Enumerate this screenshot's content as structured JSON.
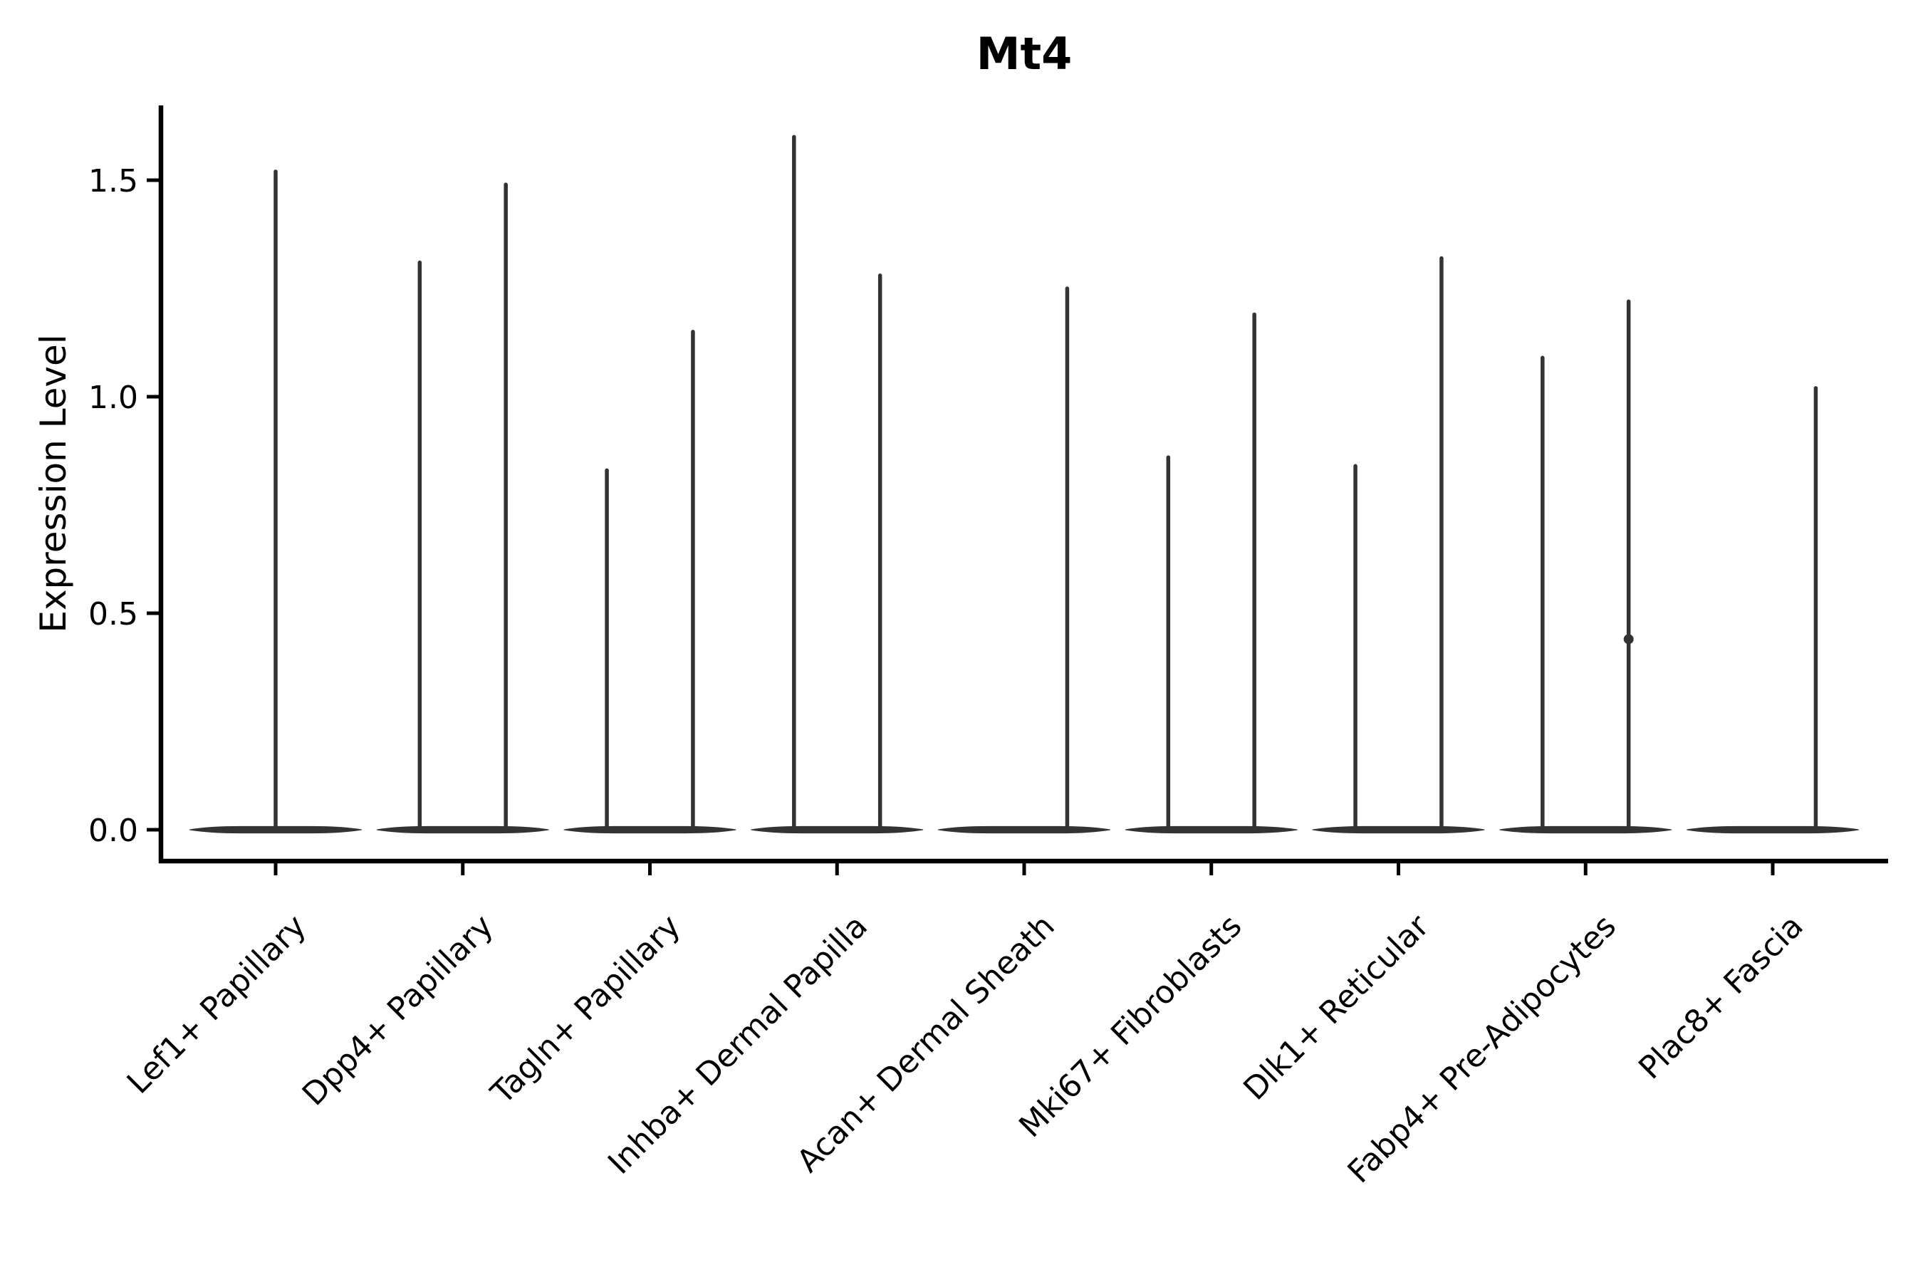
{
  "chart_data": {
    "type": "violin",
    "title": "Mt4",
    "ylabel": "Expression Level",
    "xlabel": "",
    "yticks": [
      0.0,
      0.5,
      1.0,
      1.5
    ],
    "ytick_labels": [
      "0.0",
      "0.5",
      "1.0",
      "1.5"
    ],
    "ylim": [
      -0.07,
      1.67
    ],
    "grid": false,
    "legend": "none",
    "categories": [
      "Lef1+ Papillary",
      "Dpp4+ Papillary",
      "Tagln+ Papillary",
      "Inhba+ Dermal Papilla",
      "Acan+ Dermal Sheath",
      "Mki67+ Fibroblasts",
      "Dlk1+ Reticular",
      "Fabp4+ Pre-Adipocytes",
      "Plac8+ Fascia"
    ],
    "violins": [
      {
        "category": "Lef1+ Papillary",
        "base_half_width": 0.46,
        "spikes": [
          {
            "offset": 0.0,
            "max": 1.52
          }
        ]
      },
      {
        "category": "Dpp4+ Papillary",
        "base_half_width": 0.46,
        "spikes": [
          {
            "offset": -0.23,
            "max": 1.31
          },
          {
            "offset": 0.23,
            "max": 1.49
          }
        ]
      },
      {
        "category": "Tagln+ Papillary",
        "base_half_width": 0.46,
        "spikes": [
          {
            "offset": -0.23,
            "max": 0.83
          },
          {
            "offset": 0.23,
            "max": 1.15
          }
        ]
      },
      {
        "category": "Inhba+ Dermal Papilla",
        "base_half_width": 0.46,
        "spikes": [
          {
            "offset": -0.23,
            "max": 1.6
          },
          {
            "offset": 0.23,
            "max": 1.28
          }
        ]
      },
      {
        "category": "Acan+ Dermal Sheath",
        "base_half_width": 0.46,
        "spikes": [
          {
            "offset": 0.23,
            "max": 1.25
          }
        ]
      },
      {
        "category": "Mki67+ Fibroblasts",
        "base_half_width": 0.46,
        "spikes": [
          {
            "offset": -0.23,
            "max": 0.86
          },
          {
            "offset": 0.23,
            "max": 1.19
          }
        ]
      },
      {
        "category": "Dlk1+ Reticular",
        "base_half_width": 0.46,
        "spikes": [
          {
            "offset": -0.23,
            "max": 0.84
          },
          {
            "offset": 0.23,
            "max": 1.32
          }
        ]
      },
      {
        "category": "Fabp4+ Pre-Adipocytes",
        "base_half_width": 0.46,
        "spikes": [
          {
            "offset": -0.23,
            "max": 1.09
          },
          {
            "offset": 0.23,
            "max": 1.22,
            "knob": 0.44
          }
        ]
      },
      {
        "category": "Plac8+ Fascia",
        "base_half_width": 0.46,
        "spikes": [
          {
            "offset": 0.23,
            "max": 1.02
          }
        ]
      }
    ],
    "colors": {
      "violin": "#333333",
      "axis": "#000000",
      "text": "#000000",
      "background": "#ffffff"
    }
  }
}
